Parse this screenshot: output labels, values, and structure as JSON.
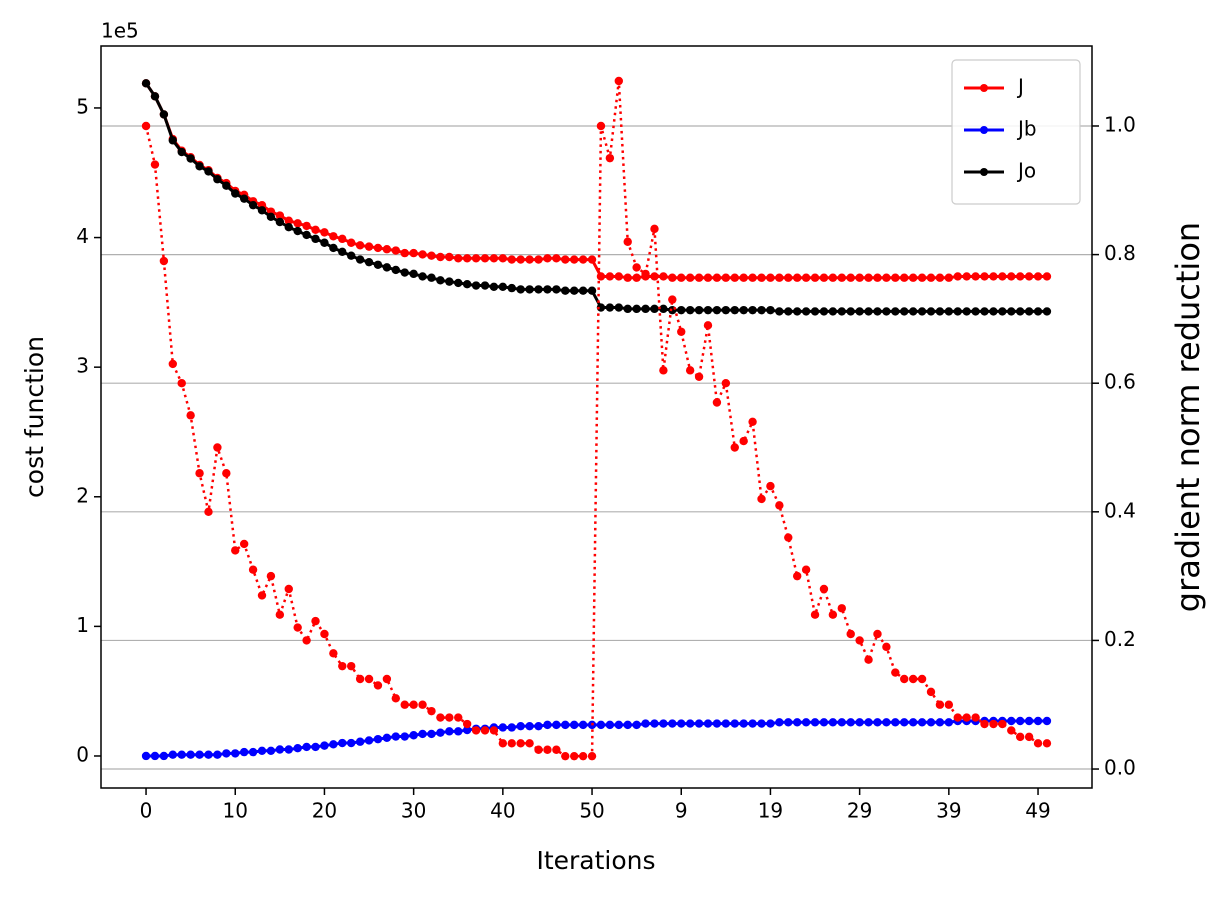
{
  "chart_data": {
    "type": "line",
    "xlabel": "Iterations",
    "ylabel": "cost function",
    "y2label": "gradient norm reduction",
    "y_offset_label": "1e5",
    "x": [
      0,
      1,
      2,
      3,
      4,
      5,
      6,
      7,
      8,
      9,
      10,
      11,
      12,
      13,
      14,
      15,
      16,
      17,
      18,
      19,
      20,
      21,
      22,
      23,
      24,
      25,
      26,
      27,
      28,
      29,
      30,
      31,
      32,
      33,
      34,
      35,
      36,
      37,
      38,
      39,
      40,
      41,
      42,
      43,
      44,
      45,
      46,
      47,
      48,
      49,
      50,
      51,
      52,
      53,
      54,
      55,
      56,
      57,
      58,
      59,
      60,
      61,
      62,
      63,
      64,
      65,
      66,
      67,
      68,
      69,
      70,
      71,
      72,
      73,
      74,
      75,
      76,
      77,
      78,
      79,
      80,
      81,
      82,
      83,
      84,
      85,
      86,
      87,
      88,
      89,
      90,
      91,
      92,
      93,
      94,
      95,
      96,
      97,
      98,
      99,
      100,
      101
    ],
    "xlim": [
      -5.05,
      106.05
    ],
    "xticks": [
      0,
      10,
      20,
      30,
      40,
      50,
      {
        "value": 60,
        "label": "9"
      },
      {
        "value": 70,
        "label": "19"
      },
      {
        "value": 80,
        "label": "29"
      },
      {
        "value": 90,
        "label": "39"
      },
      {
        "value": 100,
        "label": "49"
      }
    ],
    "ylim": [
      -0.247,
      5.478
    ],
    "yticks": [
      0,
      1,
      2,
      3,
      4,
      5
    ],
    "y2lim": [
      -0.0295,
      1.1244
    ],
    "y2ticks": [
      {
        "value": 0,
        "label": "0.0"
      },
      0.2,
      0.4,
      0.6,
      0.8,
      {
        "value": 1,
        "label": "1.0"
      }
    ],
    "grid": "y2",
    "legend": "upper right",
    "series": [
      {
        "name": "J",
        "color": "#ff0000",
        "linestyle": "solid",
        "values": [
          5.19,
          5.09,
          4.95,
          4.76,
          4.67,
          4.62,
          4.56,
          4.52,
          4.46,
          4.42,
          4.36,
          4.33,
          4.28,
          4.25,
          4.2,
          4.17,
          4.13,
          4.11,
          4.09,
          4.06,
          4.04,
          4.01,
          3.99,
          3.96,
          3.94,
          3.93,
          3.92,
          3.91,
          3.9,
          3.88,
          3.88,
          3.87,
          3.86,
          3.85,
          3.85,
          3.84,
          3.84,
          3.84,
          3.84,
          3.84,
          3.84,
          3.83,
          3.83,
          3.83,
          3.83,
          3.84,
          3.84,
          3.83,
          3.83,
          3.83,
          3.83,
          3.7,
          3.7,
          3.7,
          3.69,
          3.69,
          3.7,
          3.7,
          3.7,
          3.69,
          3.69,
          3.69,
          3.69,
          3.69,
          3.69,
          3.69,
          3.69,
          3.69,
          3.69,
          3.69,
          3.69,
          3.69,
          3.69,
          3.69,
          3.69,
          3.69,
          3.69,
          3.69,
          3.69,
          3.69,
          3.69,
          3.69,
          3.69,
          3.69,
          3.69,
          3.69,
          3.69,
          3.69,
          3.69,
          3.69,
          3.69,
          3.7,
          3.7,
          3.7,
          3.7,
          3.7,
          3.7,
          3.7,
          3.7,
          3.7,
          3.7,
          3.7
        ]
      },
      {
        "name": "Jb",
        "color": "#0000ff",
        "linestyle": "solid",
        "values": [
          0,
          0,
          0,
          0.01,
          0.01,
          0.01,
          0.01,
          0.01,
          0.01,
          0.02,
          0.02,
          0.03,
          0.03,
          0.04,
          0.04,
          0.05,
          0.05,
          0.06,
          0.07,
          0.07,
          0.08,
          0.09,
          0.1,
          0.1,
          0.11,
          0.12,
          0.13,
          0.14,
          0.15,
          0.15,
          0.16,
          0.17,
          0.17,
          0.18,
          0.19,
          0.19,
          0.2,
          0.21,
          0.21,
          0.22,
          0.22,
          0.22,
          0.23,
          0.23,
          0.23,
          0.24,
          0.24,
          0.24,
          0.24,
          0.24,
          0.24,
          0.24,
          0.24,
          0.24,
          0.24,
          0.24,
          0.25,
          0.25,
          0.25,
          0.25,
          0.25,
          0.25,
          0.25,
          0.25,
          0.25,
          0.25,
          0.25,
          0.25,
          0.25,
          0.25,
          0.25,
          0.26,
          0.26,
          0.26,
          0.26,
          0.26,
          0.26,
          0.26,
          0.26,
          0.26,
          0.26,
          0.26,
          0.26,
          0.26,
          0.26,
          0.26,
          0.26,
          0.26,
          0.26,
          0.26,
          0.26,
          0.27,
          0.27,
          0.27,
          0.27,
          0.27,
          0.27,
          0.27,
          0.27,
          0.27,
          0.27,
          0.27
        ]
      },
      {
        "name": "Jo",
        "color": "#000000",
        "linestyle": "solid",
        "values": [
          5.19,
          5.09,
          4.95,
          4.75,
          4.66,
          4.61,
          4.55,
          4.51,
          4.45,
          4.4,
          4.34,
          4.3,
          4.25,
          4.21,
          4.16,
          4.12,
          4.08,
          4.05,
          4.02,
          3.99,
          3.96,
          3.92,
          3.89,
          3.86,
          3.83,
          3.81,
          3.79,
          3.77,
          3.75,
          3.73,
          3.72,
          3.7,
          3.69,
          3.67,
          3.66,
          3.65,
          3.64,
          3.63,
          3.63,
          3.62,
          3.62,
          3.61,
          3.6,
          3.6,
          3.6,
          3.6,
          3.6,
          3.59,
          3.59,
          3.59,
          3.59,
          3.46,
          3.46,
          3.46,
          3.45,
          3.45,
          3.45,
          3.45,
          3.45,
          3.44,
          3.44,
          3.44,
          3.44,
          3.44,
          3.44,
          3.44,
          3.44,
          3.44,
          3.44,
          3.44,
          3.44,
          3.43,
          3.43,
          3.43,
          3.43,
          3.43,
          3.43,
          3.43,
          3.43,
          3.43,
          3.43,
          3.43,
          3.43,
          3.43,
          3.43,
          3.43,
          3.43,
          3.43,
          3.43,
          3.43,
          3.43,
          3.43,
          3.43,
          3.43,
          3.43,
          3.43,
          3.43,
          3.43,
          3.43,
          3.43,
          3.43,
          3.43
        ]
      },
      {
        "color": "#ff0000",
        "linestyle": "dotted",
        "axis": "y2",
        "values": [
          1.0,
          0.94,
          0.79,
          0.63,
          0.6,
          0.55,
          0.46,
          0.4,
          0.5,
          0.46,
          0.34,
          0.35,
          0.31,
          0.27,
          0.3,
          0.24,
          0.28,
          0.22,
          0.2,
          0.23,
          0.21,
          0.18,
          0.16,
          0.16,
          0.14,
          0.14,
          0.13,
          0.14,
          0.11,
          0.1,
          0.1,
          0.1,
          0.09,
          0.08,
          0.08,
          0.08,
          0.07,
          0.06,
          0.06,
          0.06,
          0.04,
          0.04,
          0.04,
          0.04,
          0.03,
          0.03,
          0.03,
          0.02,
          0.02,
          0.02,
          0.02,
          1.0,
          0.95,
          1.07,
          0.82,
          0.78,
          0.77,
          0.84,
          0.62,
          0.73,
          0.68,
          0.62,
          0.61,
          0.69,
          0.57,
          0.6,
          0.5,
          0.51,
          0.54,
          0.42,
          0.44,
          0.41,
          0.36,
          0.3,
          0.31,
          0.24,
          0.28,
          0.24,
          0.25,
          0.21,
          0.2,
          0.17,
          0.21,
          0.19,
          0.15,
          0.14,
          0.14,
          0.14,
          0.12,
          0.1,
          0.1,
          0.08,
          0.08,
          0.08,
          0.07,
          0.07,
          0.07,
          0.06,
          0.05,
          0.05,
          0.04,
          0.04
        ]
      }
    ]
  }
}
